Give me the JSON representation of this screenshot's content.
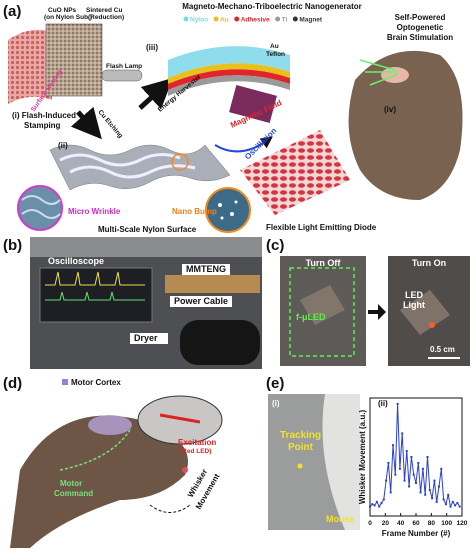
{
  "panel_a": {
    "label": "(a)",
    "title": "Magneto-Mechano-Triboelectric Nanogenerator",
    "legend": [
      {
        "name": "Nylon",
        "color": "#7fd6e8"
      },
      {
        "name": "Au",
        "color": "#e8c21a"
      },
      {
        "name": "Adhesive",
        "color": "#e0262a"
      },
      {
        "name": "Ti",
        "color": "#9a9a9a"
      },
      {
        "name": "Magnet",
        "color": "#333333"
      }
    ],
    "cuo_1": "CuO NPs",
    "cuo_2": "(on Nylon Sub.)",
    "cu_1": "Sintered Cu",
    "cu_2": "(Reduction)",
    "flash_lamp": "Flash Lamp",
    "surface_heating": "Surface Heating",
    "step_i_1": "(i) Flash-Induced",
    "step_i_2": "Stamping",
    "cu_etching": "Cu Etching",
    "step_ii": "(ii)",
    "micro_wrinkle": "Micro Wrinkle",
    "nano_bump": "Nano Bump",
    "nylon_surface": "Multi-Scale Nylon Surface",
    "step_iii": "(iii)",
    "au": "Au",
    "teflon": "Teflon",
    "energy_harvester": "Energy Harvester",
    "magnetic_field": "Magnetic Field",
    "oscillation": "Oscillation",
    "fled": "Flexible Light Emitting Diode",
    "brain_1": "Self-Powered",
    "brain_2": "Optogenetic",
    "brain_3": "Brain Stimulation",
    "step_iv": "(iv)"
  },
  "panel_b": {
    "label": "(b)",
    "oscilloscope": "Oscilloscope",
    "mmteng": "MMTENG",
    "power_cable": "Power Cable",
    "dryer": "Dryer"
  },
  "panel_c": {
    "label": "(c)",
    "turn_off": "Turn Off",
    "turn_on": "Turn On",
    "fled": "f-μLED",
    "led_light_1": "LED",
    "led_light_2": "Light",
    "scale": "0.5 cm"
  },
  "panel_d": {
    "label": "(d)",
    "motor_cortex": "Motor Cortex",
    "excitation_1": "Excitation",
    "excitation_2": "(Red LED)",
    "motor_command_1": "Motor",
    "motor_command_2": "Command",
    "whisker_1": "Whisker",
    "whisker_2": "Movement"
  },
  "panel_e": {
    "label": "(e)",
    "sub_i": "(i)",
    "tracking_1": "Tracking",
    "tracking_2": "Point",
    "mouse": "Mouse",
    "sub_ii": "(ii)"
  },
  "chart_data": {
    "type": "line",
    "x_label": "Frame Number (#)",
    "y_label": "Whisker Movement (a.u.)",
    "xlim": [
      0,
      120
    ],
    "ylim": [
      0,
      100
    ],
    "xticks": [
      0,
      20,
      40,
      60,
      80,
      100,
      120
    ],
    "color": "#2a3fd1",
    "x": [
      0,
      3,
      6,
      9,
      12,
      15,
      18,
      21,
      24,
      27,
      30,
      33,
      36,
      39,
      42,
      45,
      48,
      51,
      54,
      57,
      60,
      63,
      66,
      69,
      72,
      75,
      78,
      81,
      84,
      87,
      90,
      93,
      96,
      99,
      102,
      105,
      108,
      111,
      114,
      117
    ],
    "values": [
      8,
      10,
      9,
      12,
      8,
      11,
      14,
      30,
      45,
      20,
      60,
      35,
      95,
      40,
      70,
      30,
      55,
      25,
      50,
      35,
      28,
      45,
      20,
      40,
      18,
      50,
      22,
      15,
      30,
      12,
      25,
      40,
      14,
      10,
      18,
      8,
      12,
      9,
      11,
      8
    ]
  }
}
